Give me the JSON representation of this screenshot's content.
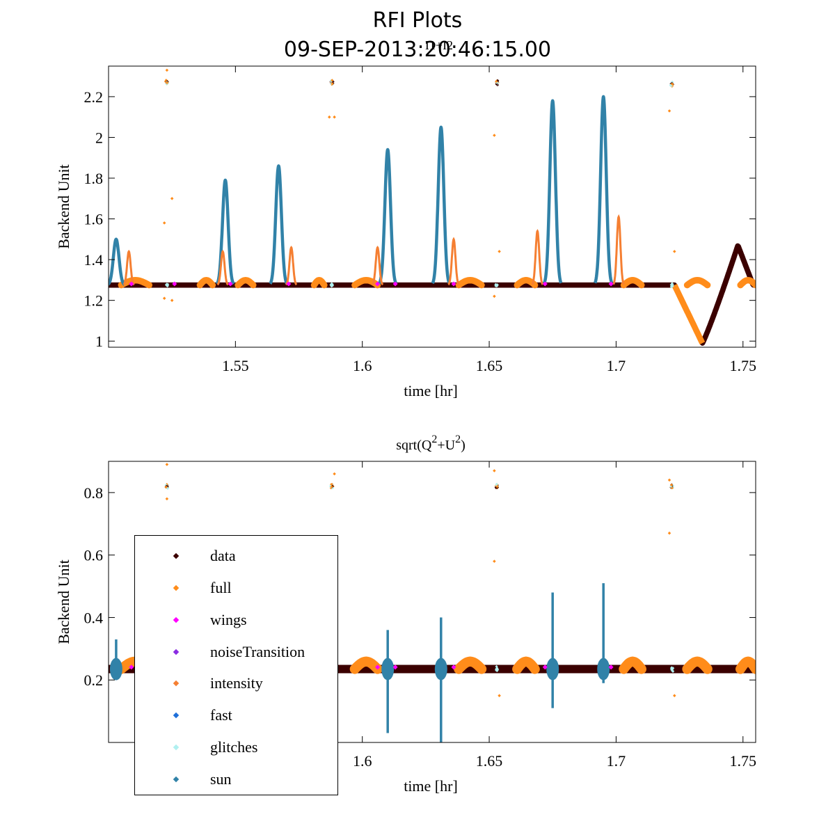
{
  "figure": {
    "title": "RFI Plots",
    "subtitle": "09-SEP-2013:20:46:15.00"
  },
  "colors": {
    "data": "#3b0000",
    "full": "#ff8c1a",
    "wings": "#ff00ff",
    "noiseTransition": "#8a2be2",
    "intensity": "#f57f32",
    "fast": "#1e6fd9",
    "glitches": "#b0f0f0",
    "sun": "#3182a8"
  },
  "legend": {
    "entries": [
      {
        "key": "data",
        "label": "data"
      },
      {
        "key": "full",
        "label": "full"
      },
      {
        "key": "wings",
        "label": "wings"
      },
      {
        "key": "noiseTransition",
        "label": "noiseTransition"
      },
      {
        "key": "intensity",
        "label": "intensity"
      },
      {
        "key": "fast",
        "label": "fast"
      },
      {
        "key": "glitches",
        "label": "glitches"
      },
      {
        "key": "sun",
        "label": "sun"
      }
    ]
  },
  "chart_data": [
    {
      "type": "scatter",
      "title": "I1+I2",
      "xlabel": "time [hr]",
      "ylabel": "Backend Unit",
      "xlim": [
        1.5,
        1.755
      ],
      "ylim": [
        0.97,
        2.35
      ],
      "xticks": [
        1.55,
        1.6,
        1.65,
        1.7,
        1.75
      ],
      "xtick_labels": [
        "1.55",
        "1.6",
        "1.65",
        "1.7",
        "1.75"
      ],
      "yticks": [
        1.0,
        1.2,
        1.4,
        1.6,
        1.8,
        2.0,
        2.2
      ],
      "ytick_labels": [
        "1",
        "1.2",
        "1.4",
        "1.6",
        "1.8",
        "2",
        "2.2"
      ],
      "baseline": 1.275,
      "baseline_spread": 0.012,
      "dip": {
        "start": 1.723,
        "min_x": 1.734,
        "min_y": 0.99,
        "end": 1.748,
        "end_y": 1.47
      },
      "sun_peaks": [
        {
          "x": 1.503,
          "y": 1.5
        },
        {
          "x": 1.546,
          "y": 1.79
        },
        {
          "x": 1.567,
          "y": 1.86
        },
        {
          "x": 1.61,
          "y": 1.94
        },
        {
          "x": 1.631,
          "y": 2.05
        },
        {
          "x": 1.675,
          "y": 2.18
        },
        {
          "x": 1.695,
          "y": 2.2
        }
      ],
      "intensity_peaks": [
        {
          "x": 1.508,
          "y": 1.44
        },
        {
          "x": 1.545,
          "y": 1.44
        },
        {
          "x": 1.572,
          "y": 1.46
        },
        {
          "x": 1.606,
          "y": 1.46
        },
        {
          "x": 1.636,
          "y": 1.5
        },
        {
          "x": 1.669,
          "y": 1.54
        },
        {
          "x": 1.701,
          "y": 1.61
        }
      ],
      "glitch_clusters": [
        {
          "x": 1.523,
          "y": 2.27
        },
        {
          "x": 1.588,
          "y": 2.27
        },
        {
          "x": 1.653,
          "y": 2.27
        },
        {
          "x": 1.722,
          "y": 2.26
        }
      ],
      "outliers": [
        {
          "x": 1.523,
          "y": 2.33
        },
        {
          "x": 1.525,
          "y": 1.7
        },
        {
          "x": 1.522,
          "y": 1.58
        },
        {
          "x": 1.522,
          "y": 1.21
        },
        {
          "x": 1.525,
          "y": 1.2
        },
        {
          "x": 1.587,
          "y": 2.1
        },
        {
          "x": 1.589,
          "y": 2.1
        },
        {
          "x": 1.652,
          "y": 2.01
        },
        {
          "x": 1.654,
          "y": 1.44
        },
        {
          "x": 1.721,
          "y": 2.13
        },
        {
          "x": 1.723,
          "y": 1.44
        },
        {
          "x": 1.652,
          "y": 1.22
        }
      ]
    },
    {
      "type": "scatter",
      "title": "sqrt(Q²+U²)",
      "title_parts": [
        "sqrt(Q",
        "2",
        "+U",
        "2",
        ")"
      ],
      "xlabel": "time [hr]",
      "ylabel": "Backend Unit",
      "xlim": [
        1.5,
        1.755
      ],
      "ylim": [
        0.0,
        0.9
      ],
      "xticks": [
        1.6,
        1.65,
        1.7,
        1.75
      ],
      "xtick_labels": [
        "1.6",
        "1.65",
        "1.7",
        "1.75"
      ],
      "yticks": [
        0.2,
        0.4,
        0.6,
        0.8
      ],
      "ytick_labels": [
        "0.2",
        "0.4",
        "0.6",
        "0.8"
      ],
      "baseline": 0.235,
      "baseline_spread": 0.012,
      "sun_spikes": [
        {
          "x": 1.503,
          "hi": 0.33,
          "lo": 0.2
        },
        {
          "x": 1.61,
          "hi": 0.36,
          "lo": 0.03
        },
        {
          "x": 1.631,
          "hi": 0.4,
          "lo": 0.0
        },
        {
          "x": 1.675,
          "hi": 0.48,
          "lo": 0.11
        },
        {
          "x": 1.695,
          "hi": 0.51,
          "lo": 0.19
        }
      ],
      "glitch_clusters": [
        {
          "x": 1.523,
          "y": 0.82
        },
        {
          "x": 1.588,
          "y": 0.82
        },
        {
          "x": 1.653,
          "y": 0.82
        },
        {
          "x": 1.722,
          "y": 0.82
        }
      ],
      "outliers": [
        {
          "x": 1.523,
          "y": 0.89
        },
        {
          "x": 1.523,
          "y": 0.78
        },
        {
          "x": 1.589,
          "y": 0.86
        },
        {
          "x": 1.652,
          "y": 0.87
        },
        {
          "x": 1.652,
          "y": 0.58
        },
        {
          "x": 1.654,
          "y": 0.15
        },
        {
          "x": 1.721,
          "y": 0.67
        },
        {
          "x": 1.723,
          "y": 0.15
        },
        {
          "x": 1.721,
          "y": 0.84
        }
      ]
    }
  ]
}
